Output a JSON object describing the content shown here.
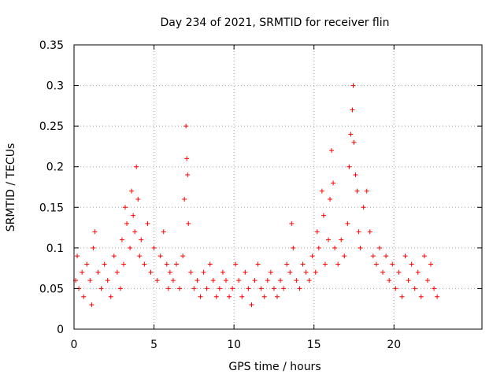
{
  "chart_data": {
    "type": "scatter",
    "title": "Day 234 of 2021, SRMTID for receiver flin",
    "xlabel": "GPS time / hours",
    "ylabel": "SRMTID / TECUs",
    "xlim": [
      0,
      25.5
    ],
    "ylim": [
      0,
      0.35
    ],
    "x_ticks": [
      "0",
      "5",
      "10",
      "15",
      "20"
    ],
    "x_tick_values": [
      0,
      5,
      10,
      15,
      20
    ],
    "y_ticks": [
      "0",
      "0.05",
      "0.1",
      "0.15",
      "0.2",
      "0.25",
      "0.3",
      "0.35"
    ],
    "y_tick_values": [
      0,
      0.05,
      0.1,
      0.15,
      0.2,
      0.25,
      0.3,
      0.35
    ],
    "grid": true,
    "marker": "plus",
    "series": [
      {
        "color": "#ff0000",
        "points": [
          [
            0.1,
            0.06
          ],
          [
            0.2,
            0.09
          ],
          [
            0.3,
            0.05
          ],
          [
            0.5,
            0.07
          ],
          [
            0.6,
            0.04
          ],
          [
            0.8,
            0.08
          ],
          [
            1.0,
            0.06
          ],
          [
            1.1,
            0.03
          ],
          [
            1.2,
            0.1
          ],
          [
            1.3,
            0.12
          ],
          [
            1.5,
            0.07
          ],
          [
            1.7,
            0.05
          ],
          [
            1.9,
            0.08
          ],
          [
            2.1,
            0.06
          ],
          [
            2.3,
            0.04
          ],
          [
            2.5,
            0.09
          ],
          [
            2.7,
            0.07
          ],
          [
            2.9,
            0.05
          ],
          [
            3.0,
            0.11
          ],
          [
            3.1,
            0.08
          ],
          [
            3.2,
            0.15
          ],
          [
            3.3,
            0.13
          ],
          [
            3.5,
            0.1
          ],
          [
            3.6,
            0.17
          ],
          [
            3.7,
            0.14
          ],
          [
            3.8,
            0.12
          ],
          [
            3.9,
            0.2
          ],
          [
            4.0,
            0.16
          ],
          [
            4.1,
            0.09
          ],
          [
            4.2,
            0.11
          ],
          [
            4.4,
            0.08
          ],
          [
            4.6,
            0.13
          ],
          [
            4.8,
            0.07
          ],
          [
            5.0,
            0.1
          ],
          [
            5.2,
            0.06
          ],
          [
            5.4,
            0.09
          ],
          [
            5.6,
            0.12
          ],
          [
            5.8,
            0.08
          ],
          [
            5.9,
            0.05
          ],
          [
            6.0,
            0.07
          ],
          [
            6.2,
            0.06
          ],
          [
            6.4,
            0.08
          ],
          [
            6.6,
            0.05
          ],
          [
            6.8,
            0.09
          ],
          [
            6.9,
            0.16
          ],
          [
            7.0,
            0.25
          ],
          [
            7.05,
            0.21
          ],
          [
            7.1,
            0.19
          ],
          [
            7.15,
            0.13
          ],
          [
            7.3,
            0.07
          ],
          [
            7.5,
            0.05
          ],
          [
            7.7,
            0.06
          ],
          [
            7.9,
            0.04
          ],
          [
            8.1,
            0.07
          ],
          [
            8.3,
            0.05
          ],
          [
            8.5,
            0.08
          ],
          [
            8.7,
            0.06
          ],
          [
            8.9,
            0.04
          ],
          [
            9.1,
            0.05
          ],
          [
            9.3,
            0.07
          ],
          [
            9.5,
            0.06
          ],
          [
            9.7,
            0.04
          ],
          [
            9.9,
            0.05
          ],
          [
            10.1,
            0.08
          ],
          [
            10.3,
            0.06
          ],
          [
            10.5,
            0.04
          ],
          [
            10.7,
            0.07
          ],
          [
            10.9,
            0.05
          ],
          [
            11.1,
            0.03
          ],
          [
            11.3,
            0.06
          ],
          [
            11.5,
            0.08
          ],
          [
            11.7,
            0.05
          ],
          [
            11.9,
            0.04
          ],
          [
            12.1,
            0.06
          ],
          [
            12.3,
            0.07
          ],
          [
            12.5,
            0.05
          ],
          [
            12.7,
            0.04
          ],
          [
            12.9,
            0.06
          ],
          [
            13.1,
            0.05
          ],
          [
            13.3,
            0.08
          ],
          [
            13.5,
            0.07
          ],
          [
            13.6,
            0.13
          ],
          [
            13.7,
            0.1
          ],
          [
            13.9,
            0.06
          ],
          [
            14.1,
            0.05
          ],
          [
            14.3,
            0.08
          ],
          [
            14.5,
            0.07
          ],
          [
            14.7,
            0.06
          ],
          [
            14.9,
            0.09
          ],
          [
            15.1,
            0.07
          ],
          [
            15.2,
            0.12
          ],
          [
            15.3,
            0.1
          ],
          [
            15.5,
            0.17
          ],
          [
            15.6,
            0.14
          ],
          [
            15.7,
            0.08
          ],
          [
            15.9,
            0.11
          ],
          [
            16.0,
            0.16
          ],
          [
            16.1,
            0.22
          ],
          [
            16.2,
            0.18
          ],
          [
            16.3,
            0.1
          ],
          [
            16.5,
            0.08
          ],
          [
            16.7,
            0.11
          ],
          [
            16.9,
            0.09
          ],
          [
            17.1,
            0.13
          ],
          [
            17.2,
            0.2
          ],
          [
            17.3,
            0.24
          ],
          [
            17.4,
            0.27
          ],
          [
            17.45,
            0.3
          ],
          [
            17.5,
            0.23
          ],
          [
            17.6,
            0.19
          ],
          [
            17.7,
            0.17
          ],
          [
            17.8,
            0.12
          ],
          [
            17.9,
            0.1
          ],
          [
            18.1,
            0.15
          ],
          [
            18.3,
            0.17
          ],
          [
            18.5,
            0.12
          ],
          [
            18.7,
            0.09
          ],
          [
            18.9,
            0.08
          ],
          [
            19.1,
            0.1
          ],
          [
            19.3,
            0.07
          ],
          [
            19.5,
            0.09
          ],
          [
            19.7,
            0.06
          ],
          [
            19.9,
            0.08
          ],
          [
            20.1,
            0.05
          ],
          [
            20.3,
            0.07
          ],
          [
            20.5,
            0.04
          ],
          [
            20.7,
            0.09
          ],
          [
            20.9,
            0.06
          ],
          [
            21.1,
            0.08
          ],
          [
            21.3,
            0.05
          ],
          [
            21.5,
            0.07
          ],
          [
            21.7,
            0.04
          ],
          [
            21.9,
            0.09
          ],
          [
            22.1,
            0.06
          ],
          [
            22.3,
            0.08
          ],
          [
            22.5,
            0.05
          ],
          [
            22.7,
            0.04
          ]
        ]
      }
    ]
  }
}
